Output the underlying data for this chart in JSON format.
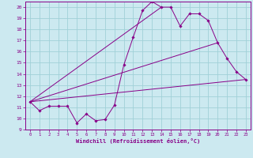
{
  "background_color": "#cce9f0",
  "grid_color": "#a0d0d8",
  "line_color": "#880088",
  "marker_color": "#880088",
  "xlabel": "Windchill (Refroidissement éolien,°C)",
  "xlabel_color": "#880088",
  "xlim": [
    -0.5,
    23.5
  ],
  "ylim": [
    9,
    20.5
  ],
  "xticks": [
    0,
    1,
    2,
    3,
    4,
    5,
    6,
    7,
    8,
    9,
    10,
    11,
    12,
    13,
    14,
    15,
    16,
    17,
    18,
    19,
    20,
    21,
    22,
    23
  ],
  "yticks": [
    9,
    10,
    11,
    12,
    13,
    14,
    15,
    16,
    17,
    18,
    19,
    20
  ],
  "main_series_x": [
    0,
    1,
    2,
    3,
    4,
    5,
    6,
    7,
    8,
    9,
    10,
    11,
    12,
    13,
    14,
    15,
    16,
    17,
    18,
    19,
    20,
    21,
    22,
    23
  ],
  "main_series_y": [
    11.5,
    10.7,
    11.1,
    11.1,
    11.1,
    9.6,
    10.4,
    9.8,
    9.9,
    11.2,
    14.8,
    17.3,
    19.7,
    20.5,
    20.0,
    20.0,
    18.3,
    19.4,
    19.4,
    18.8,
    16.8,
    15.4,
    14.2,
    13.5
  ],
  "line1_x": [
    0,
    23
  ],
  "line1_y": [
    11.5,
    13.5
  ],
  "line2_x": [
    0,
    20
  ],
  "line2_y": [
    11.5,
    16.8
  ],
  "line3_x": [
    0,
    14
  ],
  "line3_y": [
    11.5,
    20.0
  ]
}
